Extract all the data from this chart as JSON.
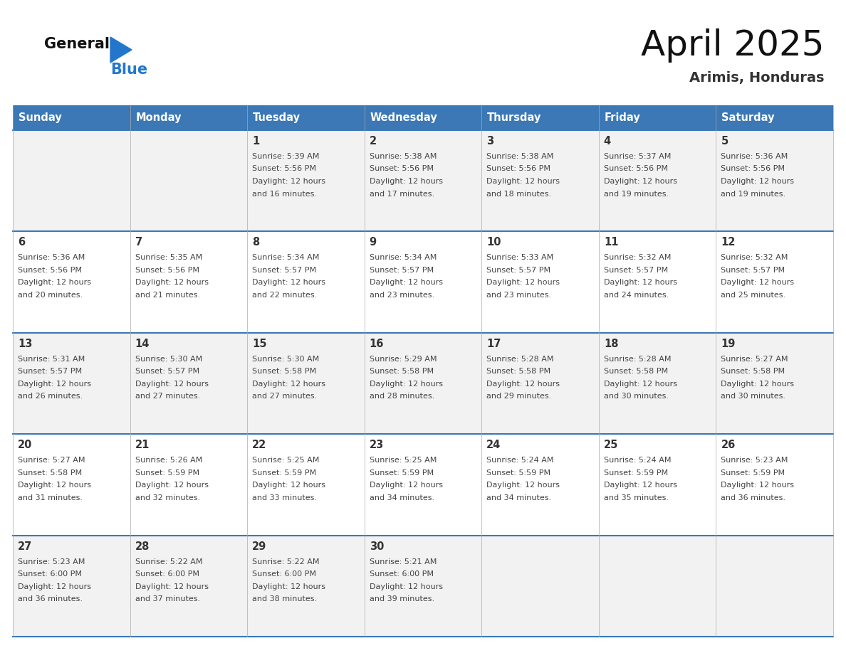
{
  "title": "April 2025",
  "subtitle": "Arimis, Honduras",
  "days_of_week": [
    "Sunday",
    "Monday",
    "Tuesday",
    "Wednesday",
    "Thursday",
    "Friday",
    "Saturday"
  ],
  "header_bg": "#3b78b5",
  "header_text": "#ffffff",
  "cell_bg_odd": "#f2f2f2",
  "cell_bg_even": "#ffffff",
  "day_number_color": "#333333",
  "text_color": "#444444",
  "border_color": "#3b78b5",
  "row_line_color": "#3b78b5",
  "title_color": "#111111",
  "subtitle_color": "#333333",
  "logo_general_color": "#111111",
  "logo_blue_color": "#2277cc",
  "calendar_data": [
    {
      "day": 1,
      "col": 2,
      "row": 0,
      "sunrise": "5:39 AM",
      "sunset": "5:56 PM",
      "daylight": "12 hours and 16 minutes."
    },
    {
      "day": 2,
      "col": 3,
      "row": 0,
      "sunrise": "5:38 AM",
      "sunset": "5:56 PM",
      "daylight": "12 hours and 17 minutes."
    },
    {
      "day": 3,
      "col": 4,
      "row": 0,
      "sunrise": "5:38 AM",
      "sunset": "5:56 PM",
      "daylight": "12 hours and 18 minutes."
    },
    {
      "day": 4,
      "col": 5,
      "row": 0,
      "sunrise": "5:37 AM",
      "sunset": "5:56 PM",
      "daylight": "12 hours and 19 minutes."
    },
    {
      "day": 5,
      "col": 6,
      "row": 0,
      "sunrise": "5:36 AM",
      "sunset": "5:56 PM",
      "daylight": "12 hours and 19 minutes."
    },
    {
      "day": 6,
      "col": 0,
      "row": 1,
      "sunrise": "5:36 AM",
      "sunset": "5:56 PM",
      "daylight": "12 hours and 20 minutes."
    },
    {
      "day": 7,
      "col": 1,
      "row": 1,
      "sunrise": "5:35 AM",
      "sunset": "5:56 PM",
      "daylight": "12 hours and 21 minutes."
    },
    {
      "day": 8,
      "col": 2,
      "row": 1,
      "sunrise": "5:34 AM",
      "sunset": "5:57 PM",
      "daylight": "12 hours and 22 minutes."
    },
    {
      "day": 9,
      "col": 3,
      "row": 1,
      "sunrise": "5:34 AM",
      "sunset": "5:57 PM",
      "daylight": "12 hours and 23 minutes."
    },
    {
      "day": 10,
      "col": 4,
      "row": 1,
      "sunrise": "5:33 AM",
      "sunset": "5:57 PM",
      "daylight": "12 hours and 23 minutes."
    },
    {
      "day": 11,
      "col": 5,
      "row": 1,
      "sunrise": "5:32 AM",
      "sunset": "5:57 PM",
      "daylight": "12 hours and 24 minutes."
    },
    {
      "day": 12,
      "col": 6,
      "row": 1,
      "sunrise": "5:32 AM",
      "sunset": "5:57 PM",
      "daylight": "12 hours and 25 minutes."
    },
    {
      "day": 13,
      "col": 0,
      "row": 2,
      "sunrise": "5:31 AM",
      "sunset": "5:57 PM",
      "daylight": "12 hours and 26 minutes."
    },
    {
      "day": 14,
      "col": 1,
      "row": 2,
      "sunrise": "5:30 AM",
      "sunset": "5:57 PM",
      "daylight": "12 hours and 27 minutes."
    },
    {
      "day": 15,
      "col": 2,
      "row": 2,
      "sunrise": "5:30 AM",
      "sunset": "5:58 PM",
      "daylight": "12 hours and 27 minutes."
    },
    {
      "day": 16,
      "col": 3,
      "row": 2,
      "sunrise": "5:29 AM",
      "sunset": "5:58 PM",
      "daylight": "12 hours and 28 minutes."
    },
    {
      "day": 17,
      "col": 4,
      "row": 2,
      "sunrise": "5:28 AM",
      "sunset": "5:58 PM",
      "daylight": "12 hours and 29 minutes."
    },
    {
      "day": 18,
      "col": 5,
      "row": 2,
      "sunrise": "5:28 AM",
      "sunset": "5:58 PM",
      "daylight": "12 hours and 30 minutes."
    },
    {
      "day": 19,
      "col": 6,
      "row": 2,
      "sunrise": "5:27 AM",
      "sunset": "5:58 PM",
      "daylight": "12 hours and 30 minutes."
    },
    {
      "day": 20,
      "col": 0,
      "row": 3,
      "sunrise": "5:27 AM",
      "sunset": "5:58 PM",
      "daylight": "12 hours and 31 minutes."
    },
    {
      "day": 21,
      "col": 1,
      "row": 3,
      "sunrise": "5:26 AM",
      "sunset": "5:59 PM",
      "daylight": "12 hours and 32 minutes."
    },
    {
      "day": 22,
      "col": 2,
      "row": 3,
      "sunrise": "5:25 AM",
      "sunset": "5:59 PM",
      "daylight": "12 hours and 33 minutes."
    },
    {
      "day": 23,
      "col": 3,
      "row": 3,
      "sunrise": "5:25 AM",
      "sunset": "5:59 PM",
      "daylight": "12 hours and 34 minutes."
    },
    {
      "day": 24,
      "col": 4,
      "row": 3,
      "sunrise": "5:24 AM",
      "sunset": "5:59 PM",
      "daylight": "12 hours and 34 minutes."
    },
    {
      "day": 25,
      "col": 5,
      "row": 3,
      "sunrise": "5:24 AM",
      "sunset": "5:59 PM",
      "daylight": "12 hours and 35 minutes."
    },
    {
      "day": 26,
      "col": 6,
      "row": 3,
      "sunrise": "5:23 AM",
      "sunset": "5:59 PM",
      "daylight": "12 hours and 36 minutes."
    },
    {
      "day": 27,
      "col": 0,
      "row": 4,
      "sunrise": "5:23 AM",
      "sunset": "6:00 PM",
      "daylight": "12 hours and 36 minutes."
    },
    {
      "day": 28,
      "col": 1,
      "row": 4,
      "sunrise": "5:22 AM",
      "sunset": "6:00 PM",
      "daylight": "12 hours and 37 minutes."
    },
    {
      "day": 29,
      "col": 2,
      "row": 4,
      "sunrise": "5:22 AM",
      "sunset": "6:00 PM",
      "daylight": "12 hours and 38 minutes."
    },
    {
      "day": 30,
      "col": 3,
      "row": 4,
      "sunrise": "5:21 AM",
      "sunset": "6:00 PM",
      "daylight": "12 hours and 39 minutes."
    }
  ]
}
